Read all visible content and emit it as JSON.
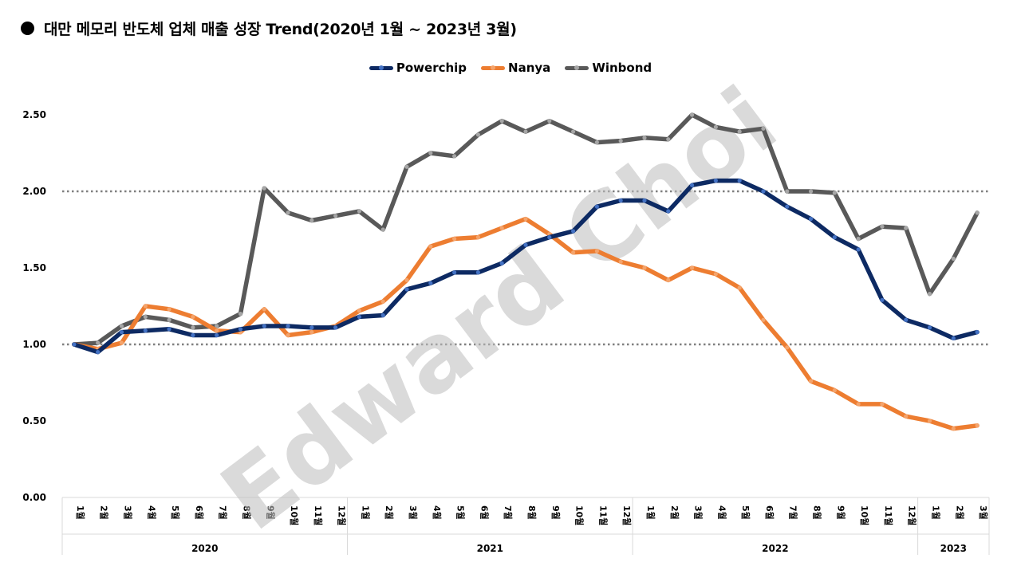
{
  "title": "대만 메모리 반도체 업체 매출 성장 Trend(2020년 1월 ~ 2023년 3월)",
  "watermark": "Edward Choi",
  "chart_data": {
    "type": "line",
    "title": "대만 메모리 반도체 업체 매출 성장 Trend(2020년 1월 ~ 2023년 3월)",
    "legend_position": "top-center",
    "ylim": [
      0,
      2.5
    ],
    "yticks": [
      "0.00",
      "0.50",
      "1.00",
      "1.50",
      "2.00",
      "2.50"
    ],
    "reference_lines": [
      1.0,
      2.0
    ],
    "month_unit": "월",
    "groups": [
      {
        "label": "2020",
        "months": [
          1,
          2,
          3,
          4,
          5,
          6,
          7,
          8,
          9,
          10,
          11,
          12
        ]
      },
      {
        "label": "2021",
        "months": [
          1,
          2,
          3,
          4,
          5,
          6,
          7,
          8,
          9,
          10,
          11,
          12
        ]
      },
      {
        "label": "2022",
        "months": [
          1,
          2,
          3,
          4,
          5,
          6,
          7,
          8,
          9,
          10,
          11,
          12
        ]
      },
      {
        "label": "2023",
        "months": [
          1,
          2,
          3
        ]
      }
    ],
    "series": [
      {
        "name": "Powerchip",
        "color": "#0d2a63",
        "values": [
          1.0,
          0.95,
          1.08,
          1.09,
          1.1,
          1.06,
          1.06,
          1.1,
          1.12,
          1.12,
          1.11,
          1.11,
          1.18,
          1.19,
          1.36,
          1.4,
          1.47,
          1.47,
          1.53,
          1.65,
          1.7,
          1.74,
          1.9,
          1.94,
          1.94,
          1.87,
          2.04,
          2.07,
          2.07,
          2.0,
          1.9,
          1.82,
          1.7,
          1.62,
          1.29,
          1.16,
          1.11,
          1.04,
          1.08
        ]
      },
      {
        "name": "Nanya",
        "color": "#ed7d31",
        "values": [
          1.0,
          0.97,
          1.01,
          1.25,
          1.23,
          1.18,
          1.09,
          1.08,
          1.23,
          1.06,
          1.08,
          1.12,
          1.22,
          1.28,
          1.42,
          1.64,
          1.69,
          1.7,
          1.76,
          1.82,
          1.72,
          1.6,
          1.61,
          1.54,
          1.5,
          1.42,
          1.5,
          1.46,
          1.37,
          1.16,
          0.98,
          0.76,
          0.7,
          0.61,
          0.61,
          0.53,
          0.5,
          0.45,
          0.47
        ]
      },
      {
        "name": "Winbond",
        "color": "#595959",
        "values": [
          1.0,
          1.01,
          1.12,
          1.18,
          1.16,
          1.11,
          1.12,
          1.2,
          2.02,
          1.86,
          1.81,
          1.84,
          1.87,
          1.75,
          2.16,
          2.25,
          2.23,
          2.37,
          2.46,
          2.39,
          2.46,
          2.39,
          2.32,
          2.33,
          2.35,
          2.34,
          2.5,
          2.42,
          2.39,
          2.41,
          2.0,
          2.0,
          1.99,
          1.69,
          1.77,
          1.76,
          1.33,
          1.56,
          1.86
        ]
      }
    ]
  }
}
